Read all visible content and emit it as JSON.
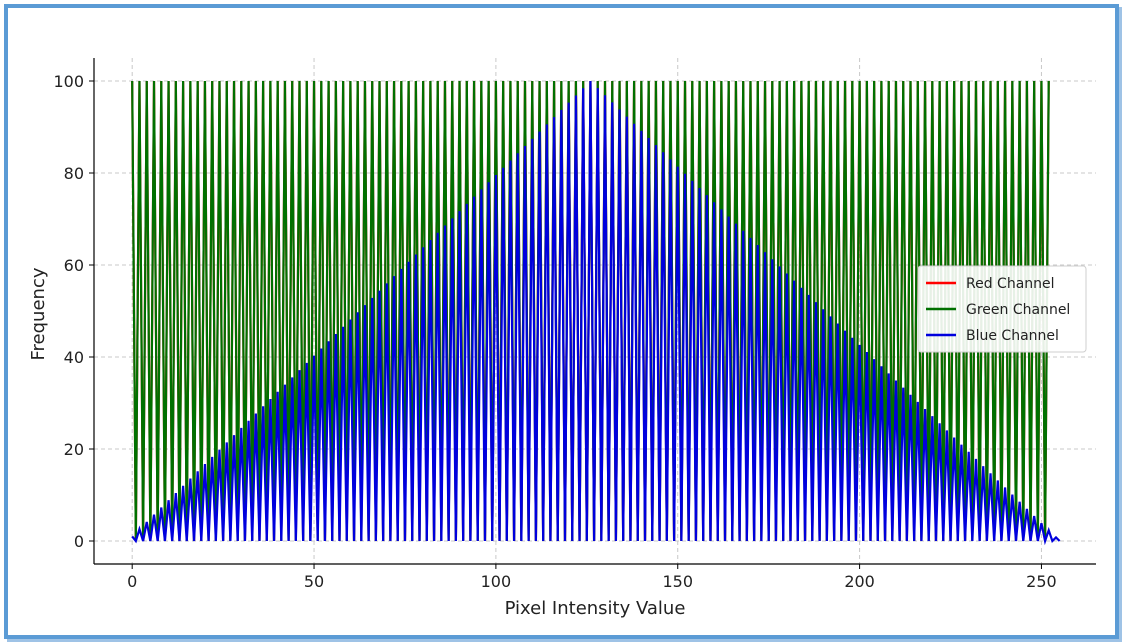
{
  "chart_data": {
    "type": "line",
    "title": "",
    "xlabel": "Pixel Intensity Value",
    "ylabel": "Frequency",
    "xlim": [
      -10.5,
      265
    ],
    "ylim": [
      -5,
      105
    ],
    "x_ticks": [
      0,
      50,
      100,
      150,
      200,
      250
    ],
    "y_ticks": [
      0,
      20,
      40,
      60,
      80,
      100
    ],
    "grid": true,
    "legend_position": "center-right",
    "series": [
      {
        "name": "Red Channel",
        "color": "#ff0000",
        "description": "peaks at 100 on even values, 0 on odd values",
        "pattern": "alternating",
        "even_value": 100,
        "odd_value": 0,
        "x_range": [
          0,
          252
        ]
      },
      {
        "name": "Green Channel",
        "color": "#007000",
        "pattern": "alternating",
        "even_value": 100,
        "odd_value": 0,
        "x_range": [
          0,
          252
        ]
      },
      {
        "name": "Blue Channel",
        "color": "#0000dd",
        "pattern": "triangle-envelope-alternating",
        "peak_x": 126,
        "peak_value": 100,
        "start_value": 1,
        "end_value": 0,
        "x_range": [
          0,
          255
        ]
      }
    ]
  }
}
